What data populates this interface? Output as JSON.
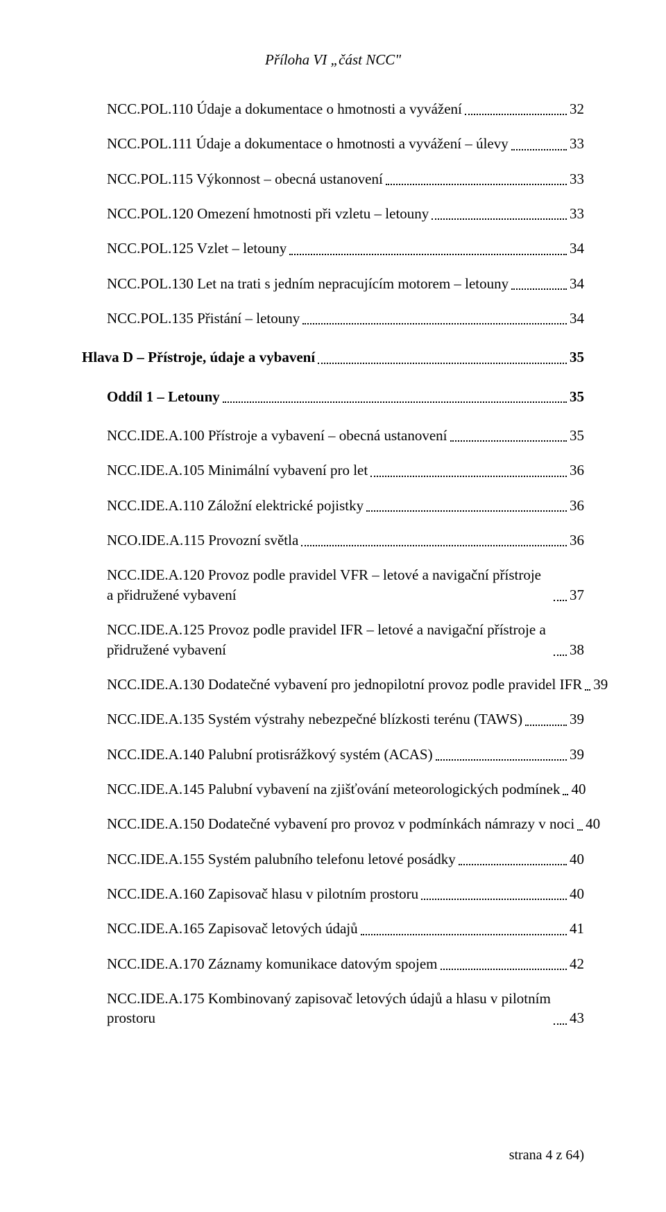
{
  "header": "Příloha VI „část NCC\"",
  "footer": "strana 4 z 64)",
  "entries": [
    {
      "label": "NCC.POL.110  Údaje a dokumentace o hmotnosti a vyvážení",
      "page": "32",
      "indent": 1
    },
    {
      "label": "NCC.POL.111  Údaje a dokumentace o hmotnosti a vyvážení – úlevy",
      "page": "33",
      "indent": 1
    },
    {
      "label": "NCC.POL.115  Výkonnost – obecná ustanovení",
      "page": "33",
      "indent": 1
    },
    {
      "label": "NCC.POL.120  Omezení hmotnosti při vzletu – letouny",
      "page": "33",
      "indent": 1
    },
    {
      "label": "NCC.POL.125  Vzlet – letouny",
      "page": "34",
      "indent": 1
    },
    {
      "label": "NCC.POL.130  Let na trati s jedním nepracujícím motorem – letouny",
      "page": "34",
      "indent": 1
    },
    {
      "label": "NCC.POL.135  Přistání – letouny",
      "page": "34",
      "indent": 1
    },
    {
      "label": "Hlava D – Přístroje, údaje a vybavení",
      "page": "35",
      "indent": 0,
      "bold": true,
      "sectionGap": true
    },
    {
      "label": "Oddíl 1 – Letouny",
      "page": "35",
      "indent": 1,
      "bold": true,
      "sectionGap": true
    },
    {
      "label": "NCC.IDE.A.100  Přístroje a vybavení – obecná ustanovení",
      "page": "35",
      "indent": 1,
      "sectionGap": true
    },
    {
      "label": "NCC.IDE.A.105  Minimální vybavení pro let",
      "page": "36",
      "indent": 1
    },
    {
      "label": "NCC.IDE.A.110  Záložní elektrické pojistky",
      "page": "36",
      "indent": 1
    },
    {
      "label": "NCO.IDE.A.115  Provozní světla",
      "page": "36",
      "indent": 1
    },
    {
      "label": "NCC.IDE.A.120  Provoz podle pravidel VFR – letové a navigační přístroje a přidružené vybavení",
      "page": "37",
      "indent": 1,
      "multi": true
    },
    {
      "label": "NCC.IDE.A.125  Provoz podle pravidel IFR – letové a navigační přístroje a přidružené vybavení",
      "page": "38",
      "indent": 1,
      "multi": true
    },
    {
      "label": "NCC.IDE.A.130  Dodatečné vybavení pro jednopilotní provoz podle pravidel IFR",
      "page": "39",
      "indent": 1
    },
    {
      "label": "NCC.IDE.A.135  Systém výstrahy nebezpečné blízkosti terénu (TAWS)",
      "page": "39",
      "indent": 1
    },
    {
      "label": "NCC.IDE.A.140  Palubní protisrážkový systém (ACAS)",
      "page": "39",
      "indent": 1
    },
    {
      "label": "NCC.IDE.A.145  Palubní vybavení na zjišťování meteorologických podmínek",
      "page": "40",
      "indent": 1
    },
    {
      "label": "NCC.IDE.A.150  Dodatečné vybavení pro provoz v podmínkách námrazy v noci",
      "page": "40",
      "indent": 1
    },
    {
      "label": "NCC.IDE.A.155  Systém palubního telefonu letové posádky",
      "page": "40",
      "indent": 1
    },
    {
      "label": "NCC.IDE.A.160  Zapisovač hlasu v pilotním prostoru",
      "page": "40",
      "indent": 1
    },
    {
      "label": "NCC.IDE.A.165  Zapisovač letových údajů",
      "page": "41",
      "indent": 1
    },
    {
      "label": "NCC.IDE.A.170  Záznamy komunikace datovým spojem",
      "page": "42",
      "indent": 1
    },
    {
      "label": "NCC.IDE.A.175  Kombinovaný zapisovač letových údajů a hlasu v pilotním prostoru",
      "page": "43",
      "indent": 1,
      "multi": true
    }
  ]
}
